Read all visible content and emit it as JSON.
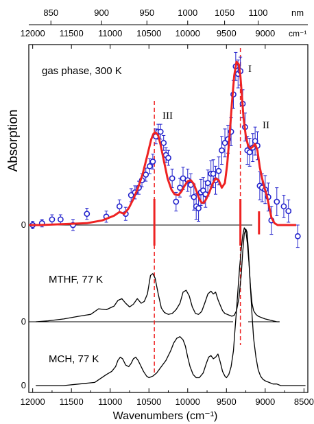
{
  "chart_data": {
    "type": "line",
    "xlabel": "Wavenumbers (cm⁻¹)",
    "ylabel": "Absorption",
    "xlim": [
      12050,
      8450
    ],
    "x_ticks": [
      "12000",
      "11500",
      "11000",
      "10500",
      "10000",
      "9500",
      "9000",
      "8500"
    ],
    "top_axis": {
      "nm_ticks": [
        "850",
        "900",
        "950",
        "1000",
        "1050",
        "1100"
      ],
      "unit_nm": "nm",
      "cm_ticks": [
        "12000",
        "11500",
        "11000",
        "10500",
        "10000",
        "9500",
        "9000"
      ],
      "unit_cm": "cm⁻¹"
    },
    "panels": [
      {
        "label": "gas phase, 300 K",
        "zero": "0",
        "ylim": [
          -0.25,
          1.38
        ]
      },
      {
        "label": "MTHF, 77 K",
        "zero": "0",
        "ylim": [
          -0.05,
          1.05
        ]
      },
      {
        "label": "MCH, 77 K",
        "zero": "0",
        "ylim": [
          -0.05,
          1.05
        ]
      }
    ],
    "annotations": [
      "III",
      "I",
      "II"
    ],
    "dashed_lines_x": [
      10430,
      9320
    ],
    "colors": {
      "fit": "#ee2222",
      "points": "#2222cc",
      "spectra": "#000000",
      "dash": "#ee2222"
    },
    "series": [
      {
        "panel": 0,
        "kind": "points_with_errors",
        "x": [
          12000,
          11880,
          11750,
          11640,
          11480,
          11300,
          11050,
          10880,
          10800,
          10730,
          10680,
          10630,
          10590,
          10540,
          10490,
          10450,
          10410,
          10380,
          10350,
          10310,
          10280,
          10250,
          10200,
          10150,
          10100,
          10060,
          10000,
          9960,
          9920,
          9890,
          9860,
          9830,
          9800,
          9770,
          9740,
          9700,
          9670,
          9640,
          9600,
          9560,
          9520,
          9480,
          9440,
          9410,
          9380,
          9350,
          9320,
          9290,
          9260,
          9230,
          9200,
          9160,
          9130,
          9100,
          9070,
          9040,
          9000,
          8960,
          8920,
          8850,
          8760,
          8700,
          8580
        ],
        "y": [
          0.0,
          0.02,
          0.06,
          0.06,
          0.0,
          0.12,
          0.09,
          0.2,
          0.12,
          0.32,
          0.35,
          0.4,
          0.48,
          0.54,
          0.63,
          0.68,
          0.95,
          1.0,
          1.0,
          0.88,
          0.75,
          0.72,
          0.5,
          0.25,
          0.4,
          0.5,
          0.48,
          0.43,
          0.3,
          0.2,
          0.18,
          0.35,
          0.37,
          0.33,
          0.45,
          0.55,
          0.55,
          0.48,
          0.58,
          0.8,
          0.88,
          0.92,
          1.0,
          1.4,
          1.7,
          1.62,
          1.65,
          1.3,
          1.05,
          0.8,
          0.78,
          0.83,
          0.9,
          0.85,
          0.42,
          0.4,
          0.38,
          0.3,
          0.05,
          0.25,
          0.2,
          0.15,
          -0.12
        ],
        "yerr": [
          0.04,
          0.04,
          0.05,
          0.05,
          0.06,
          0.06,
          0.06,
          0.07,
          0.07,
          0.07,
          0.07,
          0.07,
          0.07,
          0.07,
          0.08,
          0.08,
          0.08,
          0.08,
          0.08,
          0.08,
          0.08,
          0.08,
          0.1,
          0.1,
          0.1,
          0.12,
          0.12,
          0.12,
          0.14,
          0.14,
          0.14,
          0.14,
          0.14,
          0.14,
          0.14,
          0.14,
          0.15,
          0.15,
          0.15,
          0.15,
          0.15,
          0.15,
          0.15,
          0.15,
          0.15,
          0.15,
          0.15,
          0.15,
          0.15,
          0.15,
          0.15,
          0.15,
          0.15,
          0.15,
          0.15,
          0.15,
          0.15,
          0.15,
          0.15,
          0.15,
          0.12,
          0.12,
          0.12
        ]
      },
      {
        "panel": 0,
        "kind": "fit_line",
        "x": [
          12050,
          11900,
          11600,
          11300,
          11100,
          10950,
          10880,
          10820,
          10760,
          10700,
          10640,
          10580,
          10520,
          10470,
          10440,
          10410,
          10380,
          10350,
          10310,
          10260,
          10210,
          10170,
          10120,
          10080,
          10040,
          10000,
          9960,
          9920,
          9880,
          9850,
          9820,
          9790,
          9760,
          9720,
          9680,
          9640,
          9600,
          9560,
          9520,
          9490,
          9460,
          9430,
          9400,
          9370,
          9340,
          9320,
          9300,
          9280,
          9250,
          9220,
          9190,
          9160,
          9130,
          9100,
          9070,
          9040,
          9010,
          8980,
          8950,
          8920,
          8880,
          8840,
          8800,
          8750,
          8700,
          8650,
          8600
        ],
        "y": [
          0.0,
          0.0,
          0.01,
          0.02,
          0.05,
          0.1,
          0.14,
          0.12,
          0.18,
          0.28,
          0.4,
          0.55,
          0.75,
          0.92,
          0.98,
          0.99,
          0.96,
          0.86,
          0.7,
          0.5,
          0.38,
          0.33,
          0.32,
          0.36,
          0.42,
          0.47,
          0.48,
          0.44,
          0.35,
          0.28,
          0.24,
          0.24,
          0.28,
          0.35,
          0.44,
          0.5,
          0.48,
          0.4,
          0.45,
          0.65,
          0.95,
          1.3,
          1.6,
          1.75,
          1.72,
          1.6,
          1.38,
          1.15,
          0.95,
          0.85,
          0.82,
          0.84,
          0.87,
          0.8,
          0.62,
          0.5,
          0.4,
          0.32,
          0.2,
          0.08,
          0.02,
          0.0,
          0.0,
          0.0,
          0.0,
          0.0,
          0.0
        ]
      },
      {
        "panel": 0,
        "kind": "sticks",
        "x": [
          10430,
          9320,
          9080
        ],
        "y": [
          -0.25,
          -0.25,
          -0.1
        ]
      },
      {
        "panel": 1,
        "kind": "line",
        "x": [
          11960,
          11800,
          11600,
          11400,
          11250,
          11150,
          11050,
          10950,
          10900,
          10850,
          10800,
          10750,
          10700,
          10650,
          10600,
          10560,
          10520,
          10480,
          10450,
          10420,
          10380,
          10340,
          10300,
          10250,
          10200,
          10150,
          10100,
          10060,
          10020,
          9980,
          9940,
          9900,
          9860,
          9820,
          9780,
          9740,
          9700,
          9670,
          9640,
          9610,
          9580,
          9550,
          9520,
          9490,
          9460,
          9430,
          9400,
          9370,
          9340,
          9310,
          9290,
          9270,
          9250,
          9235,
          9220,
          9205,
          9190,
          9170,
          9150,
          9120,
          9090,
          9060,
          9030,
          9000,
          8950,
          8900,
          8850,
          8820
        ],
        "y": [
          0.0,
          0.01,
          0.03,
          0.06,
          0.08,
          0.14,
          0.13,
          0.17,
          0.23,
          0.25,
          0.2,
          0.16,
          0.19,
          0.25,
          0.2,
          0.22,
          0.3,
          0.5,
          0.52,
          0.47,
          0.3,
          0.15,
          0.1,
          0.08,
          0.09,
          0.13,
          0.2,
          0.32,
          0.34,
          0.28,
          0.16,
          0.09,
          0.08,
          0.11,
          0.2,
          0.3,
          0.33,
          0.3,
          0.32,
          0.24,
          0.18,
          0.12,
          0.09,
          0.08,
          0.07,
          0.06,
          0.07,
          0.12,
          0.25,
          0.5,
          0.75,
          0.95,
          1.0,
          0.97,
          0.82,
          0.6,
          0.38,
          0.2,
          0.12,
          0.08,
          0.06,
          0.05,
          0.04,
          0.03,
          0.02,
          0.01,
          0.0,
          0.0
        ]
      },
      {
        "panel": 2,
        "kind": "line",
        "x": [
          11960,
          11800,
          11600,
          11400,
          11200,
          11050,
          10980,
          10930,
          10900,
          10870,
          10840,
          10800,
          10760,
          10730,
          10700,
          10670,
          10640,
          10610,
          10570,
          10530,
          10500,
          10450,
          10400,
          10340,
          10280,
          10220,
          10180,
          10140,
          10100,
          10060,
          10030,
          10000,
          9970,
          9930,
          9890,
          9850,
          9800,
          9760,
          9730,
          9700,
          9670,
          9640,
          9610,
          9580,
          9550,
          9520,
          9500,
          9470,
          9440,
          9410,
          9390,
          9370,
          9350,
          9330,
          9310,
          9290,
          9270,
          9250,
          9230,
          9210,
          9190,
          9170,
          9150,
          9120,
          9090,
          9060,
          9030,
          9000,
          8950,
          8900,
          8850,
          8800,
          8750,
          8700,
          8650,
          8600,
          8550,
          8500,
          8480
        ],
        "y": [
          0.0,
          0.0,
          0.0,
          0.01,
          0.02,
          0.07,
          0.09,
          0.12,
          0.16,
          0.18,
          0.17,
          0.13,
          0.12,
          0.14,
          0.17,
          0.18,
          0.16,
          0.13,
          0.09,
          0.06,
          0.05,
          0.06,
          0.08,
          0.12,
          0.16,
          0.22,
          0.27,
          0.3,
          0.31,
          0.29,
          0.25,
          0.18,
          0.12,
          0.07,
          0.05,
          0.05,
          0.08,
          0.14,
          0.18,
          0.19,
          0.17,
          0.18,
          0.2,
          0.15,
          0.09,
          0.06,
          0.05,
          0.07,
          0.12,
          0.22,
          0.35,
          0.48,
          0.62,
          0.75,
          0.86,
          0.95,
          1.0,
          0.98,
          0.9,
          0.78,
          0.62,
          0.45,
          0.3,
          0.18,
          0.1,
          0.06,
          0.04,
          0.03,
          0.02,
          0.01,
          0.01,
          0.0,
          0.0,
          0.0,
          0.0,
          0.0,
          0.0,
          0.0,
          0.0
        ]
      }
    ]
  }
}
